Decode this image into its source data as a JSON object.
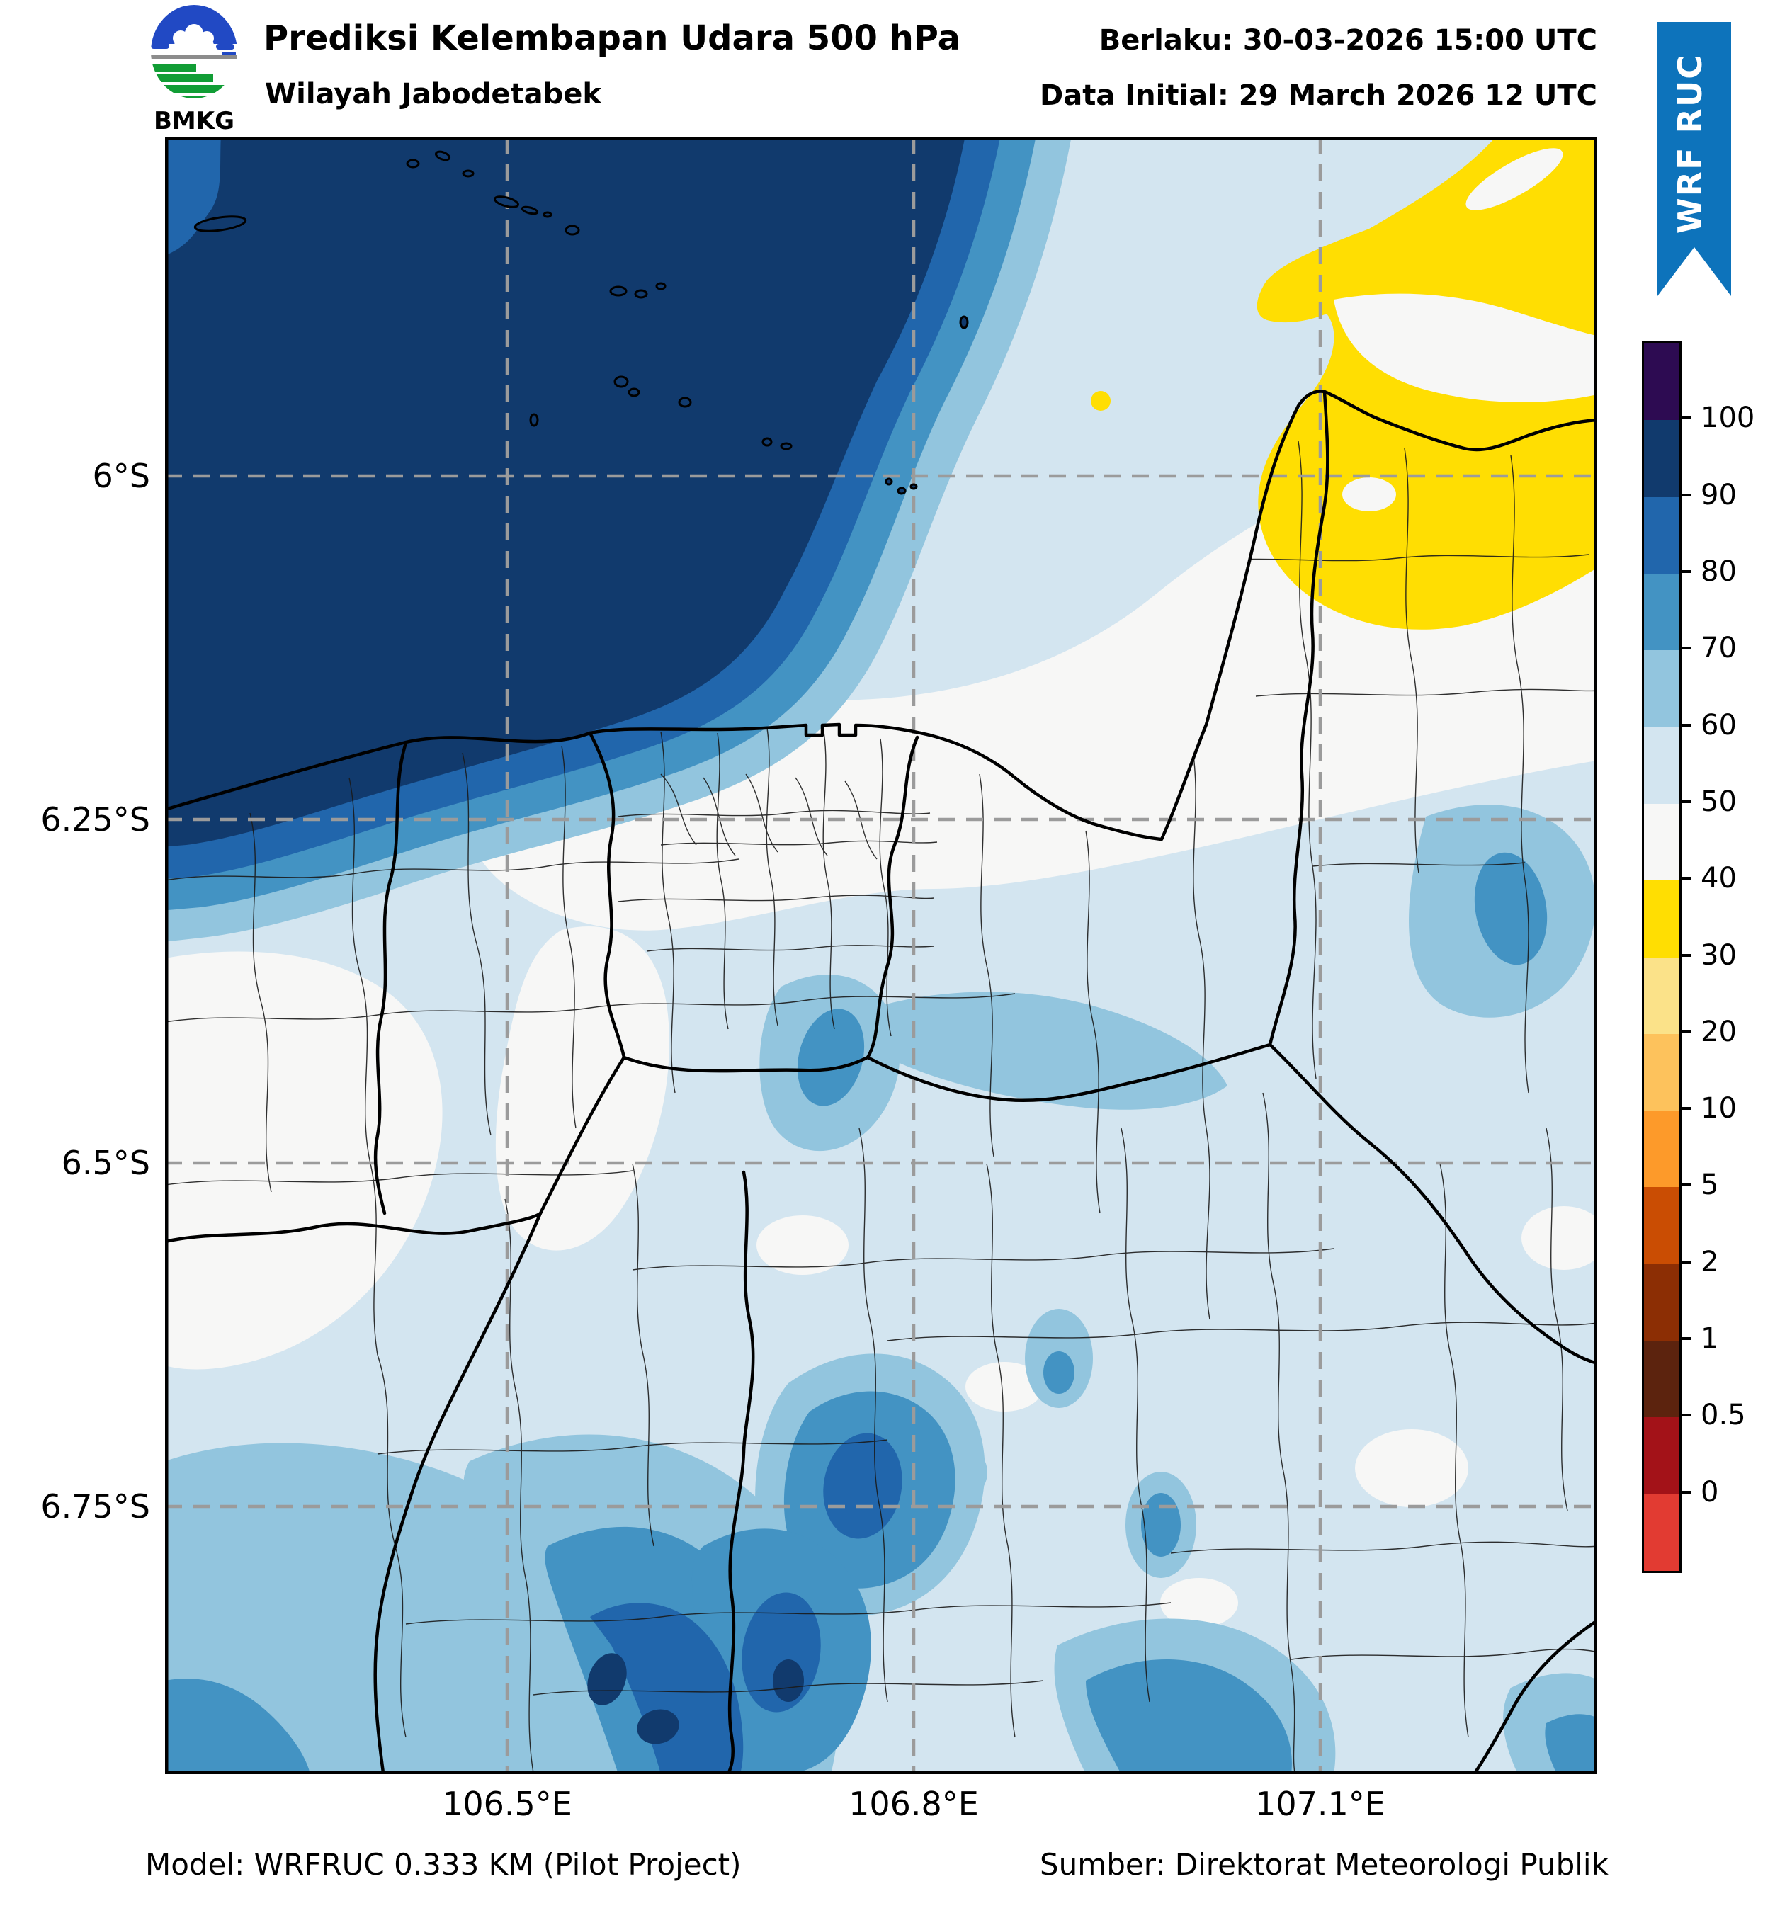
{
  "header": {
    "logo_text": "BMKG",
    "title": "Prediksi Kelembapan Udara 500 hPa",
    "subtitle": "Wilayah Jabodetabek",
    "valid_label": "Berlaku: 30-03-2026 15:00 UTC",
    "init_label": "Data Initial: 29 March 2026 12 UTC",
    "ribbon_label": "WRF RUC"
  },
  "axes": {
    "x_ticks": [
      "106.5°E",
      "106.8°E",
      "107.1°E"
    ],
    "y_ticks": [
      "6°S",
      "6.25°S",
      "6.5°S",
      "6.75°S"
    ]
  },
  "colorbar": {
    "ticks": [
      "100",
      "90",
      "80",
      "70",
      "60",
      "50",
      "40",
      "30",
      "20",
      "10",
      "5",
      "2",
      "1",
      "0.5",
      "0"
    ],
    "segments": [
      "#2d0b52",
      "#113a6d",
      "#2166ac",
      "#4393c3",
      "#92c5de",
      "#d3e5f0",
      "#f7f7f6",
      "#ffde02",
      "#fbe289",
      "#fdc25c",
      "#fd9a2a",
      "#ca4d03",
      "#8c2e04",
      "#5c230e",
      "#a31218",
      "#e23b32"
    ]
  },
  "colors": {
    "ribbon_blue": "#0d73bb",
    "gridline_gray": "#9b9b9b",
    "humidity_90_100": "#113a6d",
    "humidity_80_90": "#2166ac",
    "humidity_70_80": "#4393c3",
    "humidity_60_70": "#92c5de",
    "humidity_50_60": "#d3e5f0",
    "humidity_40_50": "#f7f7f6",
    "humidity_30_40": "#ffde02"
  },
  "footer": {
    "model": "Model: WRFRUC 0.333 KM (Pilot Project)",
    "source": "Sumber: Direktorat Meteorologi Publik"
  },
  "chart_data": {
    "type": "filled-contour-map",
    "variable": "Prediksi Kelembapan Udara 500 hPa (%)",
    "region": "Wilayah Jabodetabek",
    "valid_time": "30-03-2026 15:00 UTC",
    "initial_time": "29 March 2026 12 UTC",
    "model": "WRFRUC 0.333 KM (Pilot Project)",
    "lon_ticks": [
      "106.5°E",
      "106.8°E",
      "107.1°E"
    ],
    "lat_ticks": [
      "6°S",
      "6.25°S",
      "6.5°S",
      "6.75°S"
    ],
    "scale_tick_values": [
      100,
      90,
      80,
      70,
      60,
      50,
      40,
      30,
      20,
      10,
      5,
      2,
      1,
      0.5,
      0
    ],
    "scale_colors_top_to_bottom": [
      "#2d0b52",
      "#113a6d",
      "#2166ac",
      "#4393c3",
      "#92c5de",
      "#d3e5f0",
      "#f7f7f6",
      "#ffde02",
      "#fbe289",
      "#fdc25c",
      "#fd9a2a",
      "#ca4d03",
      "#8c2e04",
      "#5c230e",
      "#a31218",
      "#e23b32"
    ],
    "features": [
      "Large 90-100% humidity mass (dark navy) over the sea and northwest quadrant, ringed by 80-90, 70-80, 60-70 and 50-60 bands",
      "40-50% (off-white) band across Jakarta city and the north-central coastal strip",
      "30-40% (yellow) region in the northeast corner with off-white gaps",
      "50-60% (pale blue) over most inland areas with scattered 60-90% pockets in the south and southeast",
      "Small 90-100% cores embedded in the southern 70-90% blobs near the bottom edge"
    ]
  }
}
